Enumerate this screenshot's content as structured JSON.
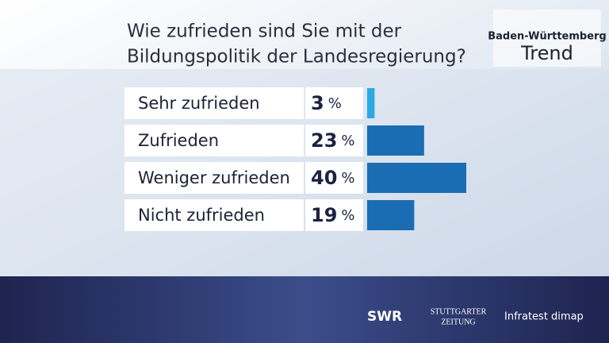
{
  "chart_data": {
    "type": "bar",
    "orientation": "horizontal",
    "title_lines": [
      "Wie zufrieden sind Sie mit der",
      "Bildungspolitik der Landesregierung?"
    ],
    "categories": [
      "Sehr zufrieden",
      "Zufrieden",
      "Weniger zufrieden",
      "Nicht zufrieden"
    ],
    "values": [
      3,
      23,
      40,
      19
    ],
    "value_labels": [
      "3 %",
      "23 %",
      "40 %",
      "19 %"
    ],
    "colors": [
      "#2aa9e3",
      "#1a6db3",
      "#1a6db3",
      "#1a6db3"
    ]
  },
  "branding": {
    "logo_top": "Baden-Württemberg",
    "logo_bottom": "Trend",
    "partners": [
      "SWR",
      "STUTTGARTER",
      "ZEITUNG",
      "Infratest dimap"
    ]
  }
}
